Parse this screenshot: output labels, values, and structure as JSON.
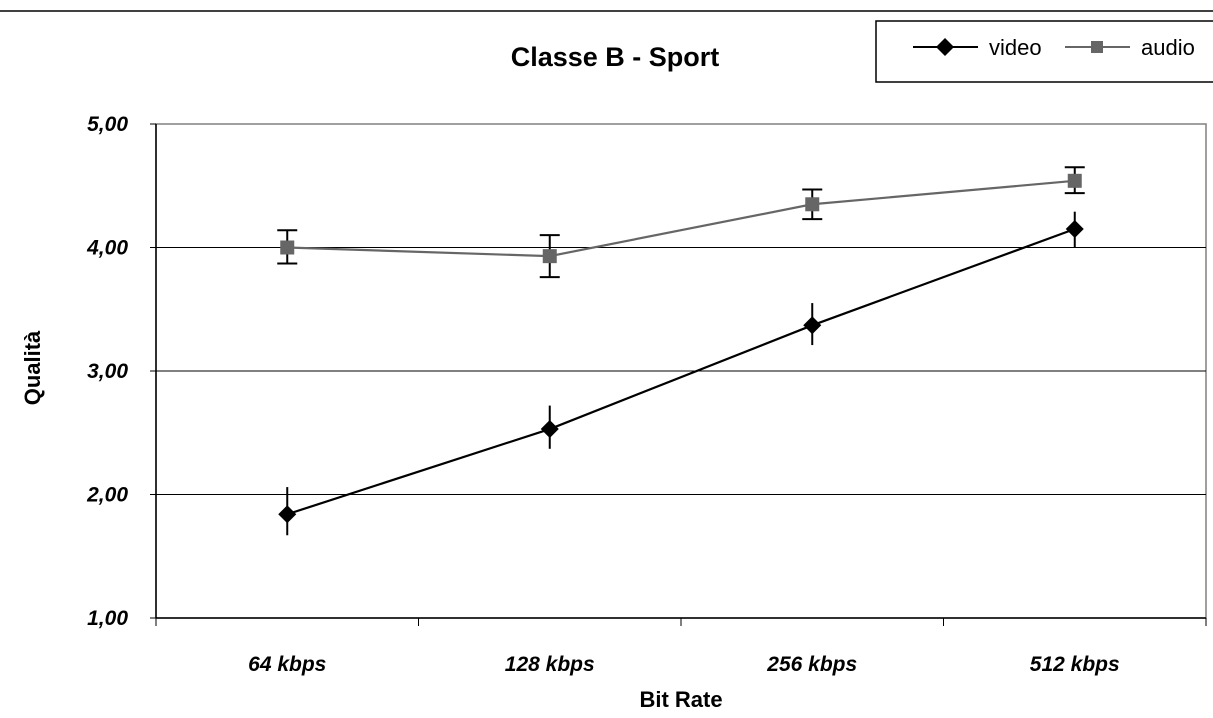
{
  "chart_data": {
    "type": "line",
    "title": "Classe B - Sport",
    "xlabel": "Bit Rate",
    "ylabel": "Qualità",
    "categories": [
      "64 kbps",
      "128 kbps",
      "256 kbps",
      "512 kbps"
    ],
    "ylim": [
      1,
      5
    ],
    "yticks": [
      "1,00",
      "2,00",
      "3,00",
      "4,00",
      "5,00"
    ],
    "grid": "horizontal",
    "legend_position": "top-right",
    "series": [
      {
        "name": "video",
        "color": "#000000",
        "marker": "diamond",
        "values": [
          1.84,
          2.53,
          3.37,
          4.15
        ],
        "error_low": [
          1.67,
          2.37,
          3.21,
          4.0
        ],
        "error_high": [
          2.06,
          2.72,
          3.55,
          4.29
        ]
      },
      {
        "name": "audio",
        "color": "#666666",
        "marker": "square",
        "values": [
          4.0,
          3.93,
          4.35,
          4.54
        ],
        "error_low": [
          3.87,
          3.76,
          4.23,
          4.44
        ],
        "error_high": [
          4.14,
          4.1,
          4.47,
          4.65
        ]
      }
    ]
  }
}
